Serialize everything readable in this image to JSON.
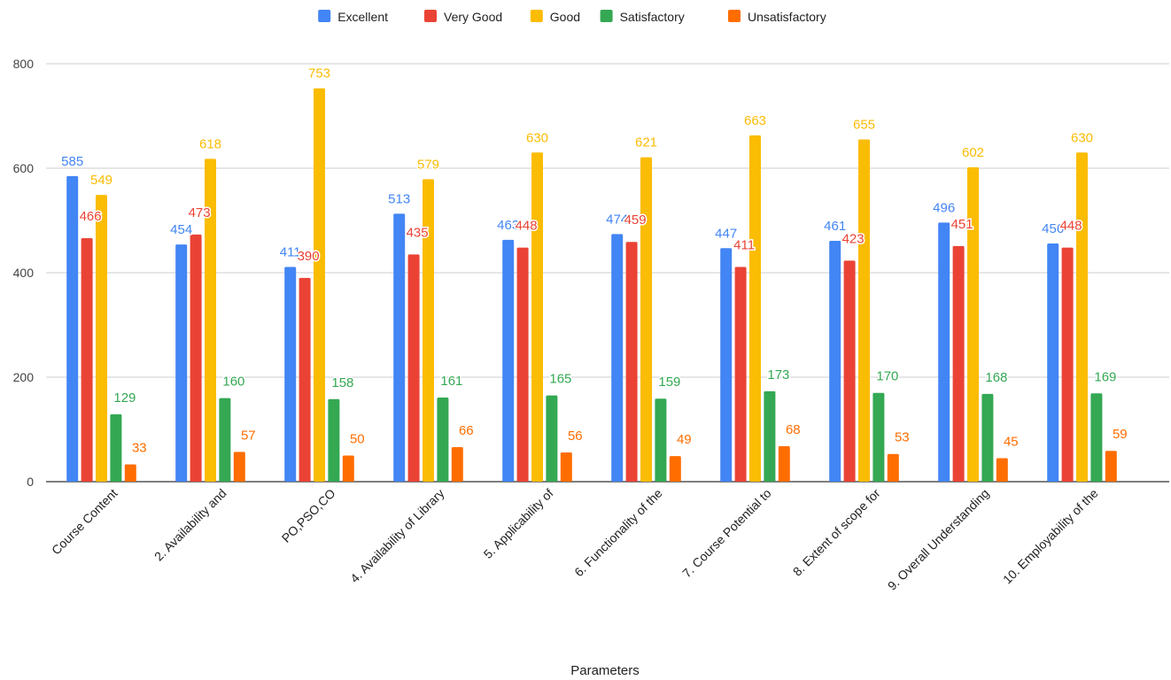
{
  "chart_data": {
    "type": "bar",
    "title": "",
    "xlabel": "Parameters",
    "ylabel": "",
    "ylim": [
      0,
      800
    ],
    "yticks": [
      0,
      200,
      400,
      600,
      800
    ],
    "grid": true,
    "legend": "top-center",
    "categories": [
      "Course Content",
      "2. Availability and",
      "PO,PSO,CO",
      "4. Availability of Library",
      "5. Applicability of",
      "6. Functionality of the",
      "7. Course Potential to",
      "8. Extent of scope for",
      "9. Overall Understanding",
      "10. Employability of the"
    ],
    "series": [
      {
        "name": "Excellent",
        "color": "#4285F4",
        "values": [
          585,
          454,
          411,
          513,
          463,
          474,
          447,
          461,
          496,
          456
        ]
      },
      {
        "name": "Very Good",
        "color": "#EA4335",
        "values": [
          466,
          473,
          390,
          435,
          448,
          459,
          411,
          423,
          451,
          448
        ]
      },
      {
        "name": "Good",
        "color": "#FBBC04",
        "values": [
          549,
          618,
          753,
          579,
          630,
          621,
          663,
          655,
          602,
          630
        ]
      },
      {
        "name": "Satisfactory",
        "color": "#34A853",
        "values": [
          129,
          160,
          158,
          161,
          165,
          159,
          173,
          170,
          168,
          169
        ]
      },
      {
        "name": "Unsatisfactory",
        "color": "#FF6D01",
        "values": [
          33,
          57,
          50,
          66,
          56,
          49,
          68,
          53,
          45,
          59
        ]
      }
    ]
  }
}
